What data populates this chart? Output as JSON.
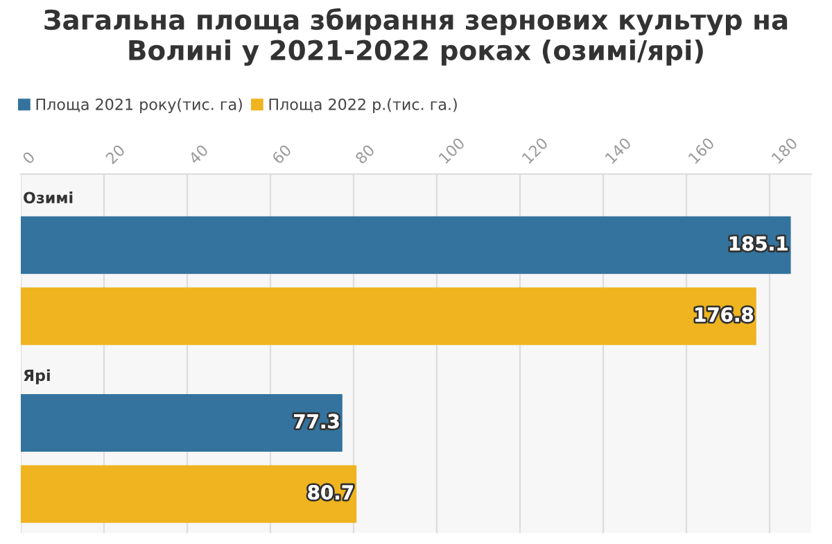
{
  "chart_data": {
    "type": "bar",
    "orientation": "horizontal",
    "title": "Загальна площа збирання зернових культур на Волині у 2021-2022 роках (озимі/ярі)",
    "categories": [
      "Озимі",
      "Ярі"
    ],
    "series": [
      {
        "name": "Площа 2021 року(тис. га)",
        "color": "#33739e",
        "values": [
          185.1,
          77.3
        ]
      },
      {
        "name": "Площа 2022 р.(тис. га.)",
        "color": "#efb41f",
        "values": [
          176.8,
          80.7
        ]
      }
    ],
    "xlim": [
      0,
      190
    ],
    "xticks": [
      0,
      20,
      40,
      60,
      80,
      100,
      120,
      140,
      160,
      180
    ],
    "grid": "x",
    "legend": "top left",
    "data_labels": true
  }
}
